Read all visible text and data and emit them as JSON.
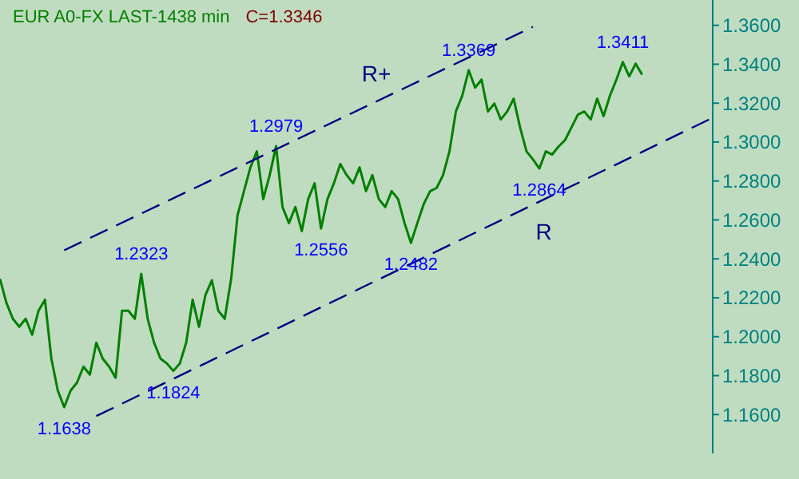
{
  "chart_data": {
    "type": "line",
    "title": "EUR A0-FX LAST-1438 min",
    "subtitle": "C=1.3346",
    "categories": [
      null,
      null,
      null,
      null,
      null,
      null,
      null,
      null,
      null,
      null,
      null,
      null,
      null,
      null,
      null,
      null,
      null,
      null,
      null,
      null,
      null,
      null,
      null,
      null,
      null,
      null,
      null,
      null,
      null,
      null,
      null,
      null,
      null,
      null,
      null,
      null,
      null,
      null,
      null,
      null,
      null,
      null,
      null,
      null,
      null,
      null,
      null,
      null,
      null,
      null,
      null,
      null,
      null,
      null,
      null,
      null,
      null,
      null,
      null,
      null,
      null,
      null,
      null,
      null,
      null,
      null,
      null,
      null,
      null,
      null,
      null,
      null,
      null,
      null,
      null,
      null,
      null,
      null,
      null,
      null,
      null,
      null,
      null,
      null,
      null,
      null,
      null,
      null,
      null,
      null,
      null,
      null,
      null,
      null,
      null,
      null,
      null,
      null,
      null,
      null,
      null,
      null,
      null,
      null,
      null,
      null,
      null,
      null,
      null,
      null,
      null,
      null
    ],
    "series": [
      {
        "color": "#008000",
        "values": [
          1.2297,
          1.2174,
          1.2092,
          1.2051,
          1.2092,
          1.201,
          1.2133,
          1.219,
          1.1887,
          1.1723,
          1.1638,
          1.1723,
          1.1764,
          1.1846,
          1.1805,
          1.1969,
          1.1887,
          1.1846,
          1.1789,
          1.2133,
          1.2133,
          1.2092,
          1.2323,
          1.2092,
          1.1969,
          1.1887,
          1.1862,
          1.1824,
          1.1862,
          1.1969,
          1.219,
          1.2051,
          1.2215,
          1.229,
          1.2133,
          1.2092,
          1.2297,
          1.2625,
          1.2748,
          1.287,
          1.2952,
          1.2707,
          1.283,
          1.2979,
          1.2666,
          1.2584,
          1.2666,
          1.2543,
          1.2707,
          1.2788,
          1.2556,
          1.2707,
          1.2788,
          1.2887,
          1.283,
          1.2788,
          1.287,
          1.2748,
          1.283,
          1.2707,
          1.2666,
          1.2748,
          1.2707,
          1.2584,
          1.2482,
          1.2584,
          1.2682,
          1.2748,
          1.2764,
          1.283,
          1.2952,
          1.3157,
          1.3239,
          1.3369,
          1.328,
          1.3321,
          1.3157,
          1.3198,
          1.3116,
          1.3157,
          1.3223,
          1.3075,
          1.2952,
          1.2911,
          1.2864,
          1.2952,
          1.2936,
          1.2977,
          1.301,
          1.3075,
          1.3141,
          1.3157,
          1.3116,
          1.3223,
          1.3133,
          1.3239,
          1.3321,
          1.3411,
          1.3338,
          1.3403,
          1.3346,
          null,
          null,
          null,
          null,
          null,
          null,
          null,
          null,
          null,
          null,
          null
        ]
      },
      {
        "name": "R+",
        "color": "#000080",
        "line_style": "dashed",
        "values": [
          null,
          null,
          null,
          null,
          null,
          null,
          null,
          null,
          null,
          null,
          1.2444,
          null,
          null,
          null,
          null,
          null,
          null,
          null,
          null,
          null,
          null,
          null,
          null,
          null,
          null,
          null,
          null,
          null,
          null,
          null,
          null,
          null,
          null,
          null,
          null,
          null,
          null,
          null,
          null,
          null,
          null,
          null,
          null,
          null,
          null,
          null,
          null,
          null,
          null,
          null,
          null,
          null,
          null,
          null,
          null,
          null,
          null,
          null,
          null,
          null,
          null,
          null,
          null,
          null,
          null,
          null,
          null,
          null,
          null,
          null,
          null,
          null,
          null,
          null,
          null,
          null,
          null,
          null,
          null,
          null,
          null,
          null,
          null,
          1.3592,
          null,
          null,
          null,
          null,
          null,
          null,
          null,
          null,
          null,
          null,
          null,
          null,
          null,
          null,
          null,
          null,
          null,
          null,
          null,
          null,
          null,
          null,
          null,
          null,
          null,
          null,
          null,
          null
        ]
      },
      {
        "name": "R",
        "color": "#000080",
        "line_style": "dashed",
        "values": [
          null,
          null,
          null,
          null,
          null,
          null,
          null,
          null,
          null,
          null,
          null,
          null,
          null,
          null,
          null,
          1.1592,
          null,
          null,
          null,
          null,
          null,
          null,
          null,
          null,
          null,
          null,
          null,
          null,
          null,
          null,
          null,
          null,
          null,
          null,
          null,
          null,
          null,
          null,
          null,
          null,
          null,
          null,
          null,
          null,
          null,
          null,
          null,
          null,
          null,
          null,
          null,
          null,
          null,
          null,
          null,
          null,
          null,
          null,
          null,
          null,
          null,
          null,
          null,
          null,
          null,
          null,
          null,
          null,
          null,
          null,
          null,
          null,
          null,
          null,
          null,
          null,
          null,
          null,
          null,
          null,
          null,
          null,
          null,
          null,
          null,
          null,
          null,
          null,
          null,
          null,
          null,
          null,
          null,
          null,
          null,
          null,
          null,
          null,
          null,
          null,
          null,
          null,
          null,
          null,
          null,
          null,
          null,
          null,
          null,
          null,
          null,
          1.3125
        ]
      }
    ],
    "annotations": [
      {
        "text": "1.1638",
        "y": 1.1638
      },
      {
        "text": "1.2323",
        "y": 1.2323
      },
      {
        "text": "1.1824",
        "y": 1.1824
      },
      {
        "text": "1.2979",
        "y": 1.2979
      },
      {
        "text": "1.2556",
        "y": 1.2556
      },
      {
        "text": "1.2482",
        "y": 1.2482
      },
      {
        "text": "1.3369",
        "y": 1.3369
      },
      {
        "text": "1.2864",
        "y": 1.2864
      },
      {
        "text": "1.3411",
        "y": 1.3411
      }
    ],
    "ylim": [
      1.14,
      1.373
    ],
    "yticks": [
      {
        "value": 1.16,
        "label": "1.1600"
      },
      {
        "value": 1.18,
        "label": "1.1800"
      },
      {
        "value": 1.2,
        "label": "1.2000"
      },
      {
        "value": 1.22,
        "label": "1.2200"
      },
      {
        "value": 1.24,
        "label": "1.2400"
      },
      {
        "value": 1.26,
        "label": "1.2600"
      },
      {
        "value": 1.28,
        "label": "1.2800"
      },
      {
        "value": 1.3,
        "label": "1.3000"
      },
      {
        "value": 1.32,
        "label": "1.3200"
      },
      {
        "value": 1.34,
        "label": "1.3400"
      },
      {
        "value": 1.36,
        "label": "1.3600"
      }
    ],
    "tick_labels": "y",
    "marker": "none"
  }
}
